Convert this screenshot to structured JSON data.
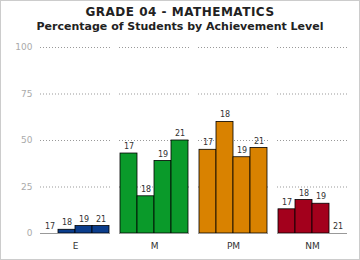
{
  "chart_data": {
    "type": "bar",
    "title": "GRADE 04 - MATHEMATICS",
    "subtitle": "Percentage of Students by Achievement Level",
    "categories": [
      "E",
      "M",
      "PM",
      "NM"
    ],
    "series": [
      {
        "name": "17",
        "values": [
          0,
          43,
          45,
          13
        ],
        "colors": [
          "#0b3d8c",
          "#0a9a2a",
          "#d98200",
          "#a3001c"
        ]
      },
      {
        "name": "18",
        "values": [
          2,
          20,
          60,
          18
        ],
        "colors": [
          "#0b3d8c",
          "#0a9a2a",
          "#d98200",
          "#a3001c"
        ]
      },
      {
        "name": "19",
        "values": [
          4,
          39,
          41,
          16
        ],
        "colors": [
          "#0b3d8c",
          "#0a9a2a",
          "#d98200",
          "#a3001c"
        ]
      },
      {
        "name": "21",
        "values": [
          4,
          50,
          46,
          0
        ],
        "colors": [
          "#0b3d8c",
          "#0a9a2a",
          "#d98200",
          "#a3001c"
        ]
      }
    ],
    "ylim": [
      0,
      100
    ],
    "yticks": [
      0,
      25,
      50,
      75,
      100
    ],
    "grid": true
  }
}
